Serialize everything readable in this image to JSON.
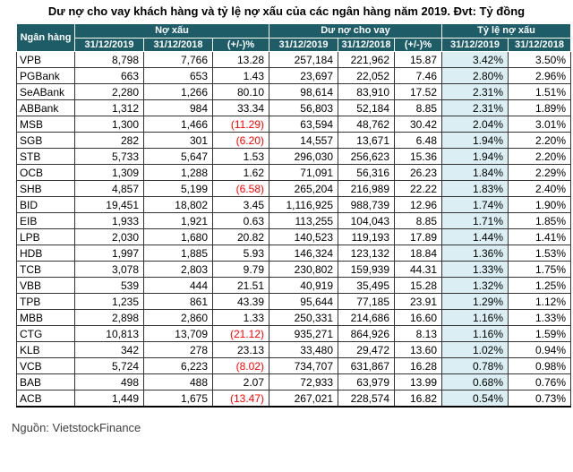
{
  "title": "Dư nợ cho vay khách hàng và tỷ lệ nợ xấu của các ngân hàng năm 2019. Đvt: Tỷ đồng",
  "source": "Nguồn: VietstockFinance",
  "colors": {
    "header_bg": "#1E5C68",
    "header_text": "#FFFFFF",
    "highlight_col_bg": "#DAEEF3",
    "negative_text": "#FF0000",
    "body_text": "#000000"
  },
  "table": {
    "bank_header": "Ngân hàng",
    "groups": [
      {
        "label": "Nợ xấu",
        "colspan": 3
      },
      {
        "label": "Dư nợ cho vay",
        "colspan": 3
      },
      {
        "label": "Tỷ lệ nợ xấu",
        "colspan": 2
      }
    ],
    "subheaders": [
      "31/12/2019",
      "31/12/2018",
      "(+/-)%",
      "31/12/2019",
      "31/12/2018",
      "(+/-)%",
      "31/12/2019",
      "31/12/2018"
    ],
    "rows": [
      {
        "bank": "VPB",
        "cells": [
          "8,798",
          "7,766",
          "13.28",
          "257,184",
          "221,962",
          "15.87",
          "3.42%",
          "3.50%"
        ]
      },
      {
        "bank": "PGBank",
        "cells": [
          "663",
          "653",
          "1.43",
          "23,697",
          "22,052",
          "7.46",
          "2.80%",
          "2.96%"
        ]
      },
      {
        "bank": "SeABank",
        "cells": [
          "2,280",
          "1,266",
          "80.10",
          "98,614",
          "83,910",
          "17.52",
          "2.31%",
          "1.51%"
        ]
      },
      {
        "bank": "ABBank",
        "cells": [
          "1,312",
          "984",
          "33.34",
          "56,803",
          "52,184",
          "8.85",
          "2.31%",
          "1.89%"
        ]
      },
      {
        "bank": "MSB",
        "cells": [
          "1,300",
          "1,466",
          "(11.29)",
          "63,594",
          "48,762",
          "30.42",
          "2.04%",
          "3.01%"
        ]
      },
      {
        "bank": "SGB",
        "cells": [
          "282",
          "301",
          "(6.20)",
          "14,557",
          "13,671",
          "6.48",
          "1.94%",
          "2.20%"
        ]
      },
      {
        "bank": "STB",
        "cells": [
          "5,733",
          "5,647",
          "1.53",
          "296,030",
          "256,623",
          "15.36",
          "1.94%",
          "2.20%"
        ]
      },
      {
        "bank": "OCB",
        "cells": [
          "1,309",
          "1,288",
          "1.62",
          "71,091",
          "56,316",
          "26.23",
          "1.84%",
          "2.29%"
        ]
      },
      {
        "bank": "SHB",
        "cells": [
          "4,857",
          "5,199",
          "(6.58)",
          "265,204",
          "216,989",
          "22.22",
          "1.83%",
          "2.40%"
        ]
      },
      {
        "bank": "BID",
        "cells": [
          "19,451",
          "18,802",
          "3.45",
          "1,116,925",
          "988,739",
          "12.96",
          "1.74%",
          "1.90%"
        ]
      },
      {
        "bank": "EIB",
        "cells": [
          "1,933",
          "1,921",
          "0.63",
          "113,255",
          "104,043",
          "8.85",
          "1.71%",
          "1.85%"
        ]
      },
      {
        "bank": "LPB",
        "cells": [
          "2,030",
          "1,680",
          "20.82",
          "140,523",
          "119,193",
          "17.89",
          "1.44%",
          "1.41%"
        ]
      },
      {
        "bank": "HDB",
        "cells": [
          "1,997",
          "1,885",
          "5.93",
          "146,324",
          "123,132",
          "18.84",
          "1.36%",
          "1.53%"
        ]
      },
      {
        "bank": "TCB",
        "cells": [
          "3,078",
          "2,803",
          "9.79",
          "230,802",
          "159,939",
          "44.31",
          "1.33%",
          "1.75%"
        ]
      },
      {
        "bank": "VBB",
        "cells": [
          "539",
          "444",
          "21.51",
          "40,919",
          "35,495",
          "15.28",
          "1.32%",
          "1.25%"
        ]
      },
      {
        "bank": "TPB",
        "cells": [
          "1,235",
          "861",
          "43.39",
          "95,644",
          "77,185",
          "23.91",
          "1.29%",
          "1.12%"
        ]
      },
      {
        "bank": "MBB",
        "cells": [
          "2,898",
          "2,860",
          "1.33",
          "250,331",
          "214,686",
          "16.60",
          "1.16%",
          "1.33%"
        ]
      },
      {
        "bank": "CTG",
        "cells": [
          "10,813",
          "13,709",
          "(21.12)",
          "935,271",
          "864,926",
          "8.13",
          "1.16%",
          "1.59%"
        ]
      },
      {
        "bank": "KLB",
        "cells": [
          "342",
          "278",
          "23.13",
          "33,480",
          "29,472",
          "13.60",
          "1.02%",
          "0.94%"
        ]
      },
      {
        "bank": "VCB",
        "cells": [
          "5,724",
          "6,223",
          "(8.02)",
          "734,707",
          "631,867",
          "16.28",
          "0.78%",
          "0.98%"
        ]
      },
      {
        "bank": "BAB",
        "cells": [
          "498",
          "488",
          "2.07",
          "72,933",
          "63,979",
          "13.99",
          "0.68%",
          "0.76%"
        ]
      },
      {
        "bank": "ACB",
        "cells": [
          "1,449",
          "1,675",
          "(13.47)",
          "267,021",
          "228,574",
          "16.82",
          "0.54%",
          "0.73%"
        ]
      }
    ]
  },
  "chart_data": {
    "type": "table",
    "title": "Dư nợ cho vay khách hàng và tỷ lệ nợ xấu của các ngân hàng năm 2019",
    "unit": "Tỷ đồng",
    "columns": [
      "Ngân hàng",
      "Nợ xấu 31/12/2019",
      "Nợ xấu 31/12/2018",
      "Nợ xấu (+/-)%",
      "Dư nợ cho vay 31/12/2019",
      "Dư nợ cho vay 31/12/2018",
      "Dư nợ cho vay (+/-)%",
      "Tỷ lệ nợ xấu 31/12/2019",
      "Tỷ lệ nợ xấu 31/12/2018"
    ],
    "rows": [
      [
        "VPB",
        8798,
        7766,
        13.28,
        257184,
        221962,
        15.87,
        3.42,
        3.5
      ],
      [
        "PGBank",
        663,
        653,
        1.43,
        23697,
        22052,
        7.46,
        2.8,
        2.96
      ],
      [
        "SeABank",
        2280,
        1266,
        80.1,
        98614,
        83910,
        17.52,
        2.31,
        1.51
      ],
      [
        "ABBank",
        1312,
        984,
        33.34,
        56803,
        52184,
        8.85,
        2.31,
        1.89
      ],
      [
        "MSB",
        1300,
        1466,
        -11.29,
        63594,
        48762,
        30.42,
        2.04,
        3.01
      ],
      [
        "SGB",
        282,
        301,
        -6.2,
        14557,
        13671,
        6.48,
        1.94,
        2.2
      ],
      [
        "STB",
        5733,
        5647,
        1.53,
        296030,
        256623,
        15.36,
        1.94,
        2.2
      ],
      [
        "OCB",
        1309,
        1288,
        1.62,
        71091,
        56316,
        26.23,
        1.84,
        2.29
      ],
      [
        "SHB",
        4857,
        5199,
        -6.58,
        265204,
        216989,
        22.22,
        1.83,
        2.4
      ],
      [
        "BID",
        19451,
        18802,
        3.45,
        1116925,
        988739,
        12.96,
        1.74,
        1.9
      ],
      [
        "EIB",
        1933,
        1921,
        0.63,
        113255,
        104043,
        8.85,
        1.71,
        1.85
      ],
      [
        "LPB",
        2030,
        1680,
        20.82,
        140523,
        119193,
        17.89,
        1.44,
        1.41
      ],
      [
        "HDB",
        1997,
        1885,
        5.93,
        146324,
        123132,
        18.84,
        1.36,
        1.53
      ],
      [
        "TCB",
        3078,
        2803,
        9.79,
        230802,
        159939,
        44.31,
        1.33,
        1.75
      ],
      [
        "VBB",
        539,
        444,
        21.51,
        40919,
        35495,
        15.28,
        1.32,
        1.25
      ],
      [
        "TPB",
        1235,
        861,
        43.39,
        95644,
        77185,
        23.91,
        1.29,
        1.12
      ],
      [
        "MBB",
        2898,
        2860,
        1.33,
        250331,
        214686,
        16.6,
        1.16,
        1.33
      ],
      [
        "CTG",
        10813,
        13709,
        -21.12,
        935271,
        864926,
        8.13,
        1.16,
        1.59
      ],
      [
        "KLB",
        342,
        278,
        23.13,
        33480,
        29472,
        13.6,
        1.02,
        0.94
      ],
      [
        "VCB",
        5724,
        6223,
        -8.02,
        734707,
        631867,
        16.28,
        0.78,
        0.98
      ],
      [
        "BAB",
        498,
        488,
        2.07,
        72933,
        63979,
        13.99,
        0.68,
        0.76
      ],
      [
        "ACB",
        1449,
        1675,
        -13.47,
        267021,
        228574,
        16.82,
        0.54,
        0.73
      ]
    ]
  }
}
